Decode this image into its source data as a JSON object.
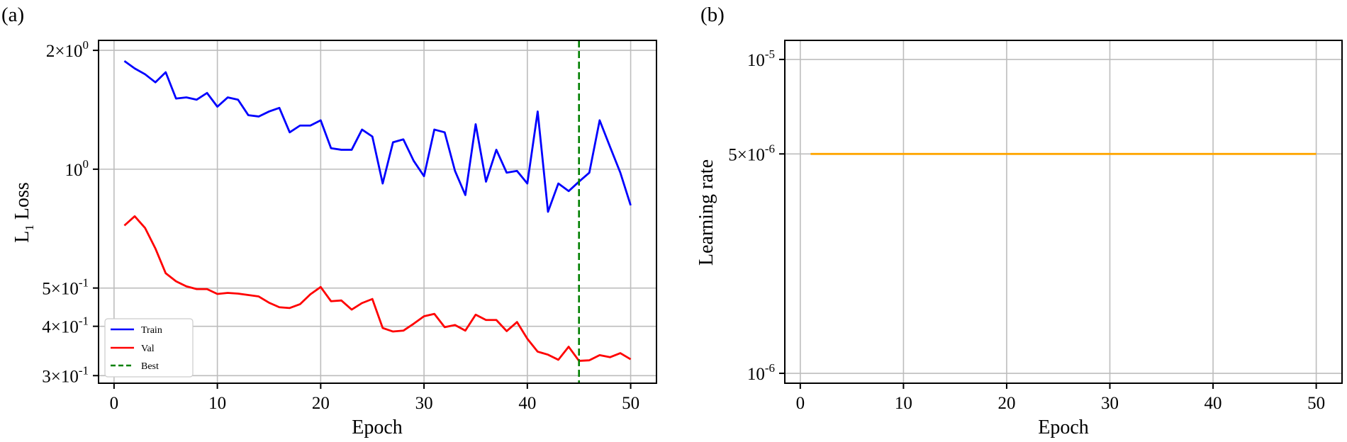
{
  "chart_data": [
    {
      "panel_label": "(a)",
      "type": "line",
      "yscale": "log",
      "xlabel": "Epoch",
      "ylabel": "L1 Loss",
      "ylabel_main": "L",
      "ylabel_sub": "1",
      "ylabel_rest": " Loss",
      "xlim": [
        -1.5,
        52.5
      ],
      "ylim": [
        0.287,
        2.12
      ],
      "xticks": [
        0,
        10,
        20,
        30,
        40,
        50
      ],
      "yticks": [
        {
          "value": 2.0,
          "base": "2×10",
          "exp": "0"
        },
        {
          "value": 1.0,
          "base": "10",
          "exp": "0"
        },
        {
          "value": 0.5,
          "base": "5×10",
          "exp": "-1"
        },
        {
          "value": 0.4,
          "base": "4×10",
          "exp": "-1"
        },
        {
          "value": 0.3,
          "base": "3×10",
          "exp": "-1"
        }
      ],
      "grid": true,
      "legend_position": "lower-left",
      "x": [
        1,
        2,
        3,
        4,
        5,
        6,
        7,
        8,
        9,
        10,
        11,
        12,
        13,
        14,
        15,
        16,
        17,
        18,
        19,
        20,
        21,
        22,
        23,
        24,
        25,
        26,
        27,
        28,
        29,
        30,
        31,
        32,
        33,
        34,
        35,
        36,
        37,
        38,
        39,
        40,
        41,
        42,
        43,
        44,
        45,
        46,
        47,
        48,
        49,
        50
      ],
      "series": [
        {
          "name": "Train",
          "color": "#0000ff",
          "style": "solid",
          "values": [
            1.88,
            1.8,
            1.74,
            1.66,
            1.76,
            1.51,
            1.52,
            1.5,
            1.56,
            1.44,
            1.52,
            1.5,
            1.37,
            1.36,
            1.4,
            1.43,
            1.24,
            1.29,
            1.29,
            1.33,
            1.13,
            1.12,
            1.12,
            1.26,
            1.21,
            0.92,
            1.17,
            1.19,
            1.05,
            0.96,
            1.26,
            1.24,
            0.99,
            0.86,
            1.3,
            0.93,
            1.12,
            0.98,
            0.99,
            0.92,
            1.4,
            0.78,
            0.92,
            0.88,
            0.93,
            0.98,
            1.33,
            1.14,
            0.98,
            0.81
          ]
        },
        {
          "name": "Val",
          "color": "#ff0000",
          "style": "solid",
          "values": [
            0.72,
            0.76,
            0.71,
            0.63,
            0.545,
            0.52,
            0.505,
            0.497,
            0.497,
            0.483,
            0.486,
            0.484,
            0.48,
            0.476,
            0.459,
            0.447,
            0.445,
            0.455,
            0.482,
            0.503,
            0.463,
            0.465,
            0.441,
            0.458,
            0.469,
            0.396,
            0.388,
            0.39,
            0.406,
            0.424,
            0.43,
            0.398,
            0.403,
            0.39,
            0.428,
            0.415,
            0.415,
            0.389,
            0.41,
            0.372,
            0.345,
            0.339,
            0.329,
            0.355,
            0.327,
            0.328,
            0.338,
            0.334,
            0.342,
            0.33
          ]
        },
        {
          "name": "Best",
          "color": "#008000",
          "style": "dashed",
          "vline_x": 45
        }
      ]
    },
    {
      "panel_label": "(b)",
      "type": "line",
      "yscale": "log",
      "xlabel": "Epoch",
      "ylabel": "Learning rate",
      "xlim": [
        -1.5,
        52.5
      ],
      "ylim": [
        9.3e-07,
        1.15e-05
      ],
      "xticks": [
        0,
        10,
        20,
        30,
        40,
        50
      ],
      "yticks": [
        {
          "value": 1e-05,
          "base": "10",
          "exp": "-5"
        },
        {
          "value": 5e-06,
          "base": "5×10",
          "exp": "-6"
        },
        {
          "value": 1e-06,
          "base": "10",
          "exp": "-6"
        }
      ],
      "grid": true,
      "x": [
        1,
        50
      ],
      "series": [
        {
          "name": "Learning rate",
          "color": "#ffa500",
          "style": "solid",
          "values": [
            5e-06,
            5e-06
          ]
        }
      ]
    }
  ]
}
